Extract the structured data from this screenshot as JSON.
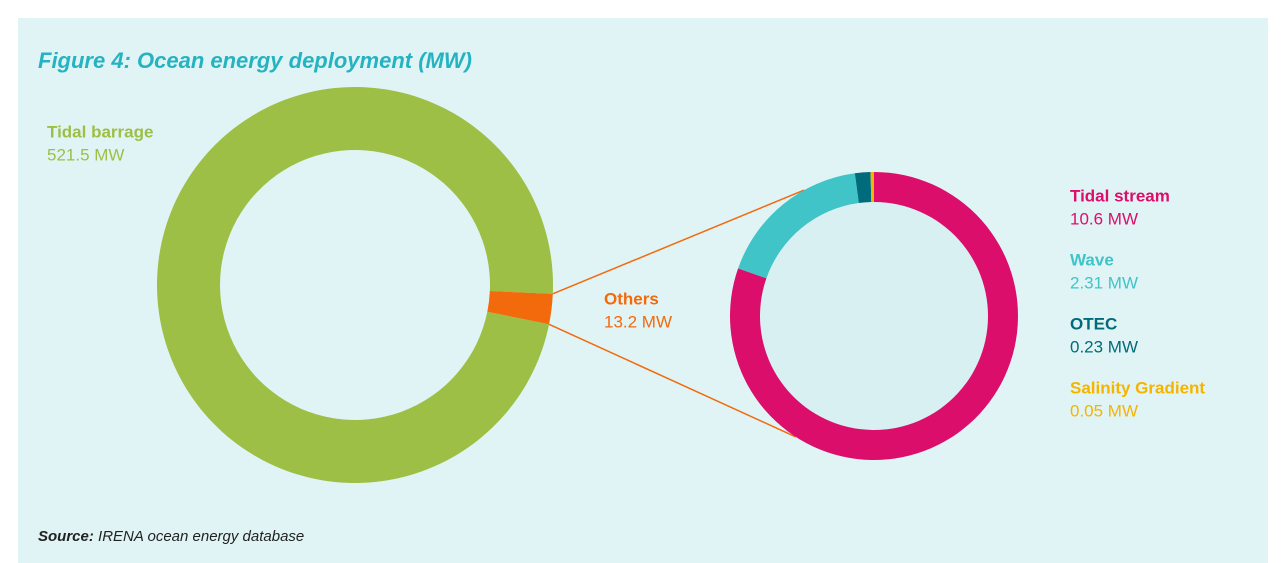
{
  "title": "Figure 4: Ocean energy deployment (MW)",
  "source_label": "Source:",
  "source": "IRENA ocean energy database",
  "chart_data": [
    {
      "type": "donut",
      "categories": [
        "Tidal barrage",
        "Others"
      ],
      "values": [
        521.5,
        13.2
      ],
      "value_labels": [
        "521.5 MW",
        "13.2 MW"
      ],
      "colors": [
        "#9dbf45",
        "#f26a0c"
      ]
    },
    {
      "type": "donut",
      "categories": [
        "Tidal stream",
        "Wave",
        "OTEC",
        "Salinity Gradient"
      ],
      "values": [
        10.6,
        2.31,
        0.23,
        0.05
      ],
      "value_labels": [
        "10.6 MW",
        "2.31 MW",
        "0.23 MW",
        "0.05 MW"
      ],
      "colors": [
        "#dc0e6b",
        "#40c4c8",
        "#006b7b",
        "#f5b400"
      ]
    }
  ]
}
